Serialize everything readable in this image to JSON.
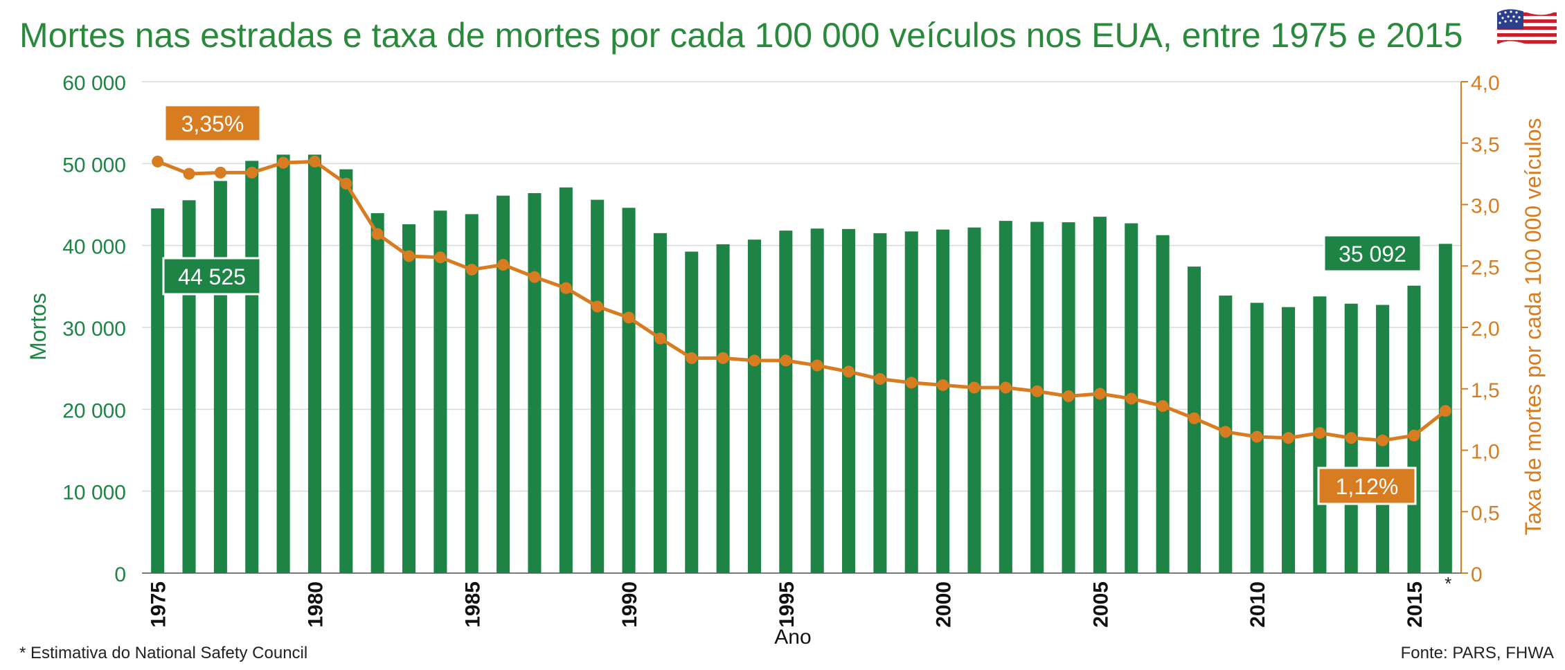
{
  "title": "Mortes nas estradas e taxa de mortes por cada 100 000 veículos nos EUA, entre 1975 e 2015",
  "flag_icon": "us-flag-icon",
  "footnote": "* Estimativa do National Safety Council",
  "source": "Fonte: PARS, FHWA",
  "colors": {
    "bars": "#1e8446",
    "line": "#d77c20",
    "left_axis": "#1e8446",
    "right_axis": "#d77c20",
    "grid": "#d9d9d9",
    "title": "#2a8a3c"
  },
  "chart_data": {
    "type": "bar+line",
    "grid": true,
    "x_label": "Ano",
    "x_ticks": [
      "1975",
      "1980",
      "1985",
      "1990",
      "1995",
      "2000",
      "2005",
      "2010",
      "2015",
      "*"
    ],
    "x": [
      1975,
      1976,
      1977,
      1978,
      1979,
      1980,
      1981,
      1982,
      1983,
      1984,
      1985,
      1986,
      1987,
      1988,
      1989,
      1990,
      1991,
      1992,
      1993,
      1994,
      1995,
      1996,
      1997,
      1998,
      1999,
      2000,
      2001,
      2002,
      2003,
      2004,
      2005,
      2006,
      2007,
      2008,
      2009,
      2010,
      2011,
      2012,
      2013,
      2014,
      2015,
      2016
    ],
    "left_axis": {
      "label": "Mortos",
      "range": [
        0,
        60000
      ],
      "ticks": [
        "0",
        "10 000",
        "20 000",
        "30 000",
        "40 000",
        "50 000",
        "60 000"
      ]
    },
    "right_axis": {
      "label": "Taxa de mortes por cada 100 000 veículos",
      "range": [
        0,
        4
      ],
      "ticks": [
        "0",
        "0,5",
        "1,0",
        "1,5",
        "2,0",
        "2,5",
        "3,0",
        "3,5",
        "4,0"
      ]
    },
    "series": [
      {
        "type": "bar",
        "axis": "left",
        "values": [
          44525,
          45523,
          47878,
          50331,
          51093,
          51091,
          49301,
          43945,
          42589,
          44257,
          43825,
          46087,
          46390,
          47087,
          45582,
          44599,
          41508,
          39250,
          40150,
          40716,
          41817,
          42065,
          42013,
          41501,
          41717,
          41945,
          42196,
          43005,
          42884,
          42836,
          43510,
          42708,
          41259,
          37423,
          33883,
          32999,
          32479,
          33782,
          32893,
          32744,
          35092,
          40200
        ]
      },
      {
        "type": "line",
        "axis": "right",
        "values": [
          3.35,
          3.25,
          3.26,
          3.26,
          3.34,
          3.35,
          3.17,
          2.76,
          2.58,
          2.57,
          2.47,
          2.51,
          2.41,
          2.32,
          2.17,
          2.08,
          1.91,
          1.75,
          1.75,
          1.73,
          1.73,
          1.69,
          1.64,
          1.58,
          1.55,
          1.53,
          1.51,
          1.51,
          1.48,
          1.44,
          1.46,
          1.42,
          1.36,
          1.26,
          1.15,
          1.11,
          1.1,
          1.14,
          1.1,
          1.08,
          1.12,
          1.32
        ]
      }
    ],
    "annotations": [
      {
        "text": "3,35%",
        "color": "#d77c20"
      },
      {
        "text": "44 525",
        "color": "#1e8446"
      },
      {
        "text": "35 092",
        "color": "#1e8446"
      },
      {
        "text": "1,12%",
        "color": "#d77c20"
      }
    ]
  }
}
